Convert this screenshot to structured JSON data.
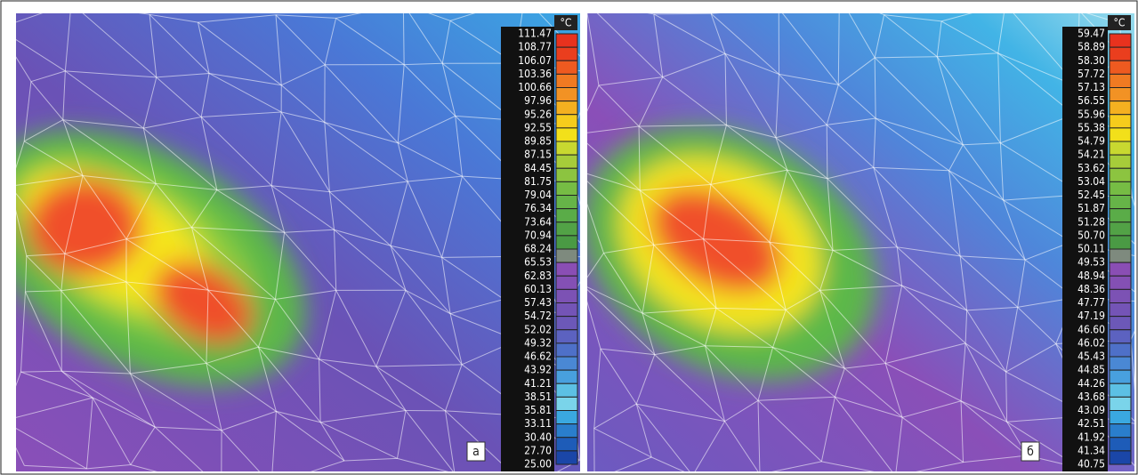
{
  "panels": [
    {
      "unit": "°C",
      "label": "а",
      "scale": [
        "111.47",
        "108.77",
        "106.07",
        "103.36",
        "100.66",
        "97.96",
        "95.26",
        "92.55",
        "89.85",
        "87.15",
        "84.45",
        "81.75",
        "79.04",
        "76.34",
        "73.64",
        "70.94",
        "68.24",
        "65.53",
        "62.83",
        "60.13",
        "57.43",
        "54.72",
        "52.02",
        "49.32",
        "46.62",
        "43.92",
        "41.21",
        "38.51",
        "35.81",
        "33.11",
        "30.40",
        "27.70",
        "25.00"
      ]
    },
    {
      "unit": "°C",
      "label": "б",
      "scale": [
        "59.47",
        "58.89",
        "58.30",
        "57.72",
        "57.13",
        "56.55",
        "55.96",
        "55.38",
        "54.79",
        "54.21",
        "53.62",
        "53.04",
        "52.45",
        "51.87",
        "51.28",
        "50.70",
        "50.11",
        "49.53",
        "48.94",
        "48.36",
        "47.77",
        "47.19",
        "46.60",
        "46.02",
        "45.43",
        "44.85",
        "44.26",
        "43.68",
        "43.09",
        "42.51",
        "41.92",
        "41.34",
        "40.75"
      ]
    }
  ]
}
